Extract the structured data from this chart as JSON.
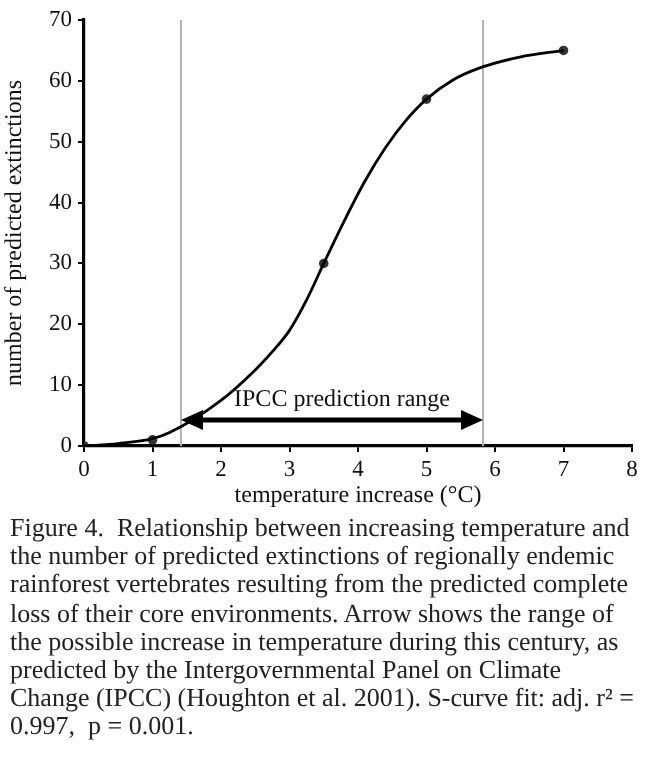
{
  "chart_data": {
    "type": "scatter",
    "xlabel": "temperature increase (°C)",
    "ylabel": "number of predicted extinctions",
    "xlim": [
      0,
      8
    ],
    "xticks": [
      0,
      1,
      2,
      3,
      4,
      5,
      6,
      7,
      8
    ],
    "ylim": [
      0,
      70
    ],
    "yticks": [
      0,
      10,
      20,
      30,
      40,
      50,
      60,
      70
    ],
    "marker": "circle",
    "series": [
      {
        "type": "line",
        "color": "#000000",
        "marker": "none",
        "x": [
          0,
          0.5,
          1,
          1.25,
          2,
          2.5,
          2.75,
          3,
          3.25,
          3.5,
          3.8,
          4.1,
          4.4,
          4.7,
          5,
          5.38,
          5.75,
          6.36,
          7
        ],
        "values": [
          0,
          0.4,
          1.2,
          2.2,
          7.5,
          12.5,
          15.5,
          19,
          24,
          30,
          37,
          43.5,
          49,
          53.5,
          57,
          60.1,
          62,
          63.9,
          65
        ]
      },
      {
        "color": "#333333",
        "x": [
          0,
          1,
          3.5,
          5,
          7
        ],
        "values": [
          0,
          1,
          30,
          57,
          65
        ]
      }
    ],
    "ref_lines": [
      {
        "axis": "x",
        "value": 1.4,
        "color": "#b4b4b4"
      },
      {
        "axis": "x",
        "value": 5.8,
        "color": "#b4b4b4"
      }
    ],
    "annotations": [
      "IPCC prediction range",
      "Figure 4.  Relationship between increasing temperature and the number of predicted extinctions of regionally endemic rainforest vertebrates resulting from the predicted complete loss of their core environments. Arrow shows the range of the possible increase in temperature during this century, as predicted by the Intergovernmental Panel on Climate Change (IPCC) (Houghton et al. 2001). S-curve fit: adj. r² = 0.997,  p = 0.001."
    ]
  }
}
